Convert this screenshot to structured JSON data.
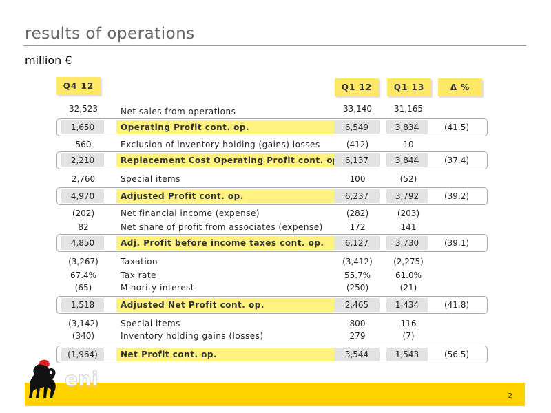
{
  "title": "results of operations",
  "subtitle": "million €",
  "headers": {
    "q4_12": "Q4 12",
    "q1_12": "Q1 12",
    "q1_13": "Q1 13",
    "delta": "Δ %"
  },
  "rows": [
    {
      "q4": "32,523",
      "label": "Net sales from operations",
      "q1_12": "33,140",
      "q1_13": "31,165",
      "delta": ""
    },
    {
      "q4": "1,650",
      "label": "Operating Profit cont. op.",
      "q1_12": "6,549",
      "q1_13": "3,834",
      "delta": "(41.5)"
    },
    {
      "q4": "560",
      "label": "Exclusion of inventory holding (gains) losses",
      "q1_12": "(412)",
      "q1_13": "10",
      "delta": ""
    },
    {
      "q4": "2,210",
      "label": "Replacement Cost Operating Profit cont. op",
      "q1_12": "6,137",
      "q1_13": "3,844",
      "delta": "(37.4)"
    },
    {
      "q4": "2,760",
      "label": "Special items",
      "q1_12": "100",
      "q1_13": "(52)",
      "delta": ""
    },
    {
      "q4": "4,970",
      "label": "Adjusted Profit cont. op.",
      "q1_12": "6,237",
      "q1_13": "3,792",
      "delta": "(39.2)"
    },
    {
      "q4": "(202)",
      "label": "Net financial income (expense)",
      "q1_12": "(282)",
      "q1_13": "(203)",
      "delta": ""
    },
    {
      "q4": "82",
      "label": "Net share of profit from associates (expense)",
      "q1_12": "172",
      "q1_13": "141",
      "delta": ""
    },
    {
      "q4": "4,850",
      "label": "Adj. Profit before income taxes cont. op.",
      "q1_12": "6,127",
      "q1_13": "3,730",
      "delta": "(39.1)"
    },
    {
      "q4": "(3,267)",
      "label": "Taxation",
      "q1_12": "(3,412)",
      "q1_13": "(2,275)",
      "delta": ""
    },
    {
      "q4": "67.4%",
      "label": "Tax rate",
      "q1_12": "55.7%",
      "q1_13": "61.0%",
      "delta": ""
    },
    {
      "q4": "(65)",
      "label": "Minority interest",
      "q1_12": "(250)",
      "q1_13": "(21)",
      "delta": ""
    },
    {
      "q4": "1,518",
      "label": "Adjusted Net Profit cont. op.",
      "q1_12": "2,465",
      "q1_13": "1,434",
      "delta": "(41.8)"
    },
    {
      "q4": "(3,142)",
      "label": "Special items",
      "q1_12": "800",
      "q1_13": "116",
      "delta": ""
    },
    {
      "q4": "(340)",
      "label": "Inventory holding gains (losses)",
      "q1_12": "279",
      "q1_13": "(7)",
      "delta": ""
    },
    {
      "q4": "(1,964)",
      "label": "Net Profit cont. op.",
      "q1_12": "3,544",
      "q1_13": "1,543",
      "delta": "(56.5)"
    }
  ],
  "logo": {
    "text": "eni",
    "icon": "six-legged-dog-icon"
  },
  "page_number": "2",
  "colors": {
    "accent_yellow": "#ffd200",
    "header_yellow": "#ffe866",
    "highlight_yellow": "#fff280"
  }
}
